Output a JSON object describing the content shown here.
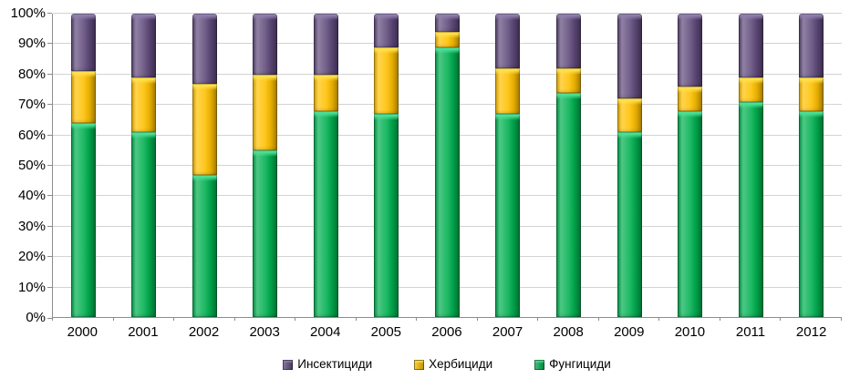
{
  "chart_data": {
    "type": "bar",
    "variant": "stacked-100-percent",
    "title": "",
    "xlabel": "",
    "ylabel": "",
    "unit": "%",
    "ylim": [
      0,
      100
    ],
    "grid": true,
    "legend_position": "bottom-center",
    "categories": [
      "2000",
      "2001",
      "2002",
      "2003",
      "2004",
      "2005",
      "2006",
      "2007",
      "2008",
      "2009",
      "2010",
      "2011",
      "2012"
    ],
    "y_ticks": [
      "0%",
      "10%",
      "20%",
      "30%",
      "40%",
      "50%",
      "60%",
      "70%",
      "80%",
      "90%",
      "100%"
    ],
    "series": [
      {
        "name": "Фунгициди",
        "color": "#00B050",
        "highlight": "#4FE096",
        "values": [
          64,
          61,
          47,
          55,
          68,
          67,
          89,
          67,
          74,
          61,
          68,
          71,
          68
        ]
      },
      {
        "name": "Хербициди",
        "color": "#FFC000",
        "highlight": "#FFE14D",
        "values": [
          17,
          18,
          30,
          25,
          12,
          22,
          5,
          15,
          8,
          11,
          8,
          8,
          11
        ]
      },
      {
        "name": "Инсектициди",
        "color": "#604A7B",
        "highlight": "#8F7FAD",
        "values": [
          19,
          21,
          23,
          20,
          20,
          11,
          6,
          18,
          18,
          28,
          24,
          21,
          21
        ]
      }
    ],
    "legend": [
      {
        "label": "Инсектициди",
        "color": "#604A7B",
        "highlight": "#8F7FAD"
      },
      {
        "label": "Хербициди",
        "color": "#FFC000",
        "highlight": "#FFE14D"
      },
      {
        "label": "Фунгициди",
        "color": "#00B050",
        "highlight": "#4FE096"
      }
    ],
    "colors": {
      "gridline": "#D3D3D3",
      "axis": "#8C8C8C",
      "text": "#000000",
      "background": "#FFFFFF"
    }
  }
}
